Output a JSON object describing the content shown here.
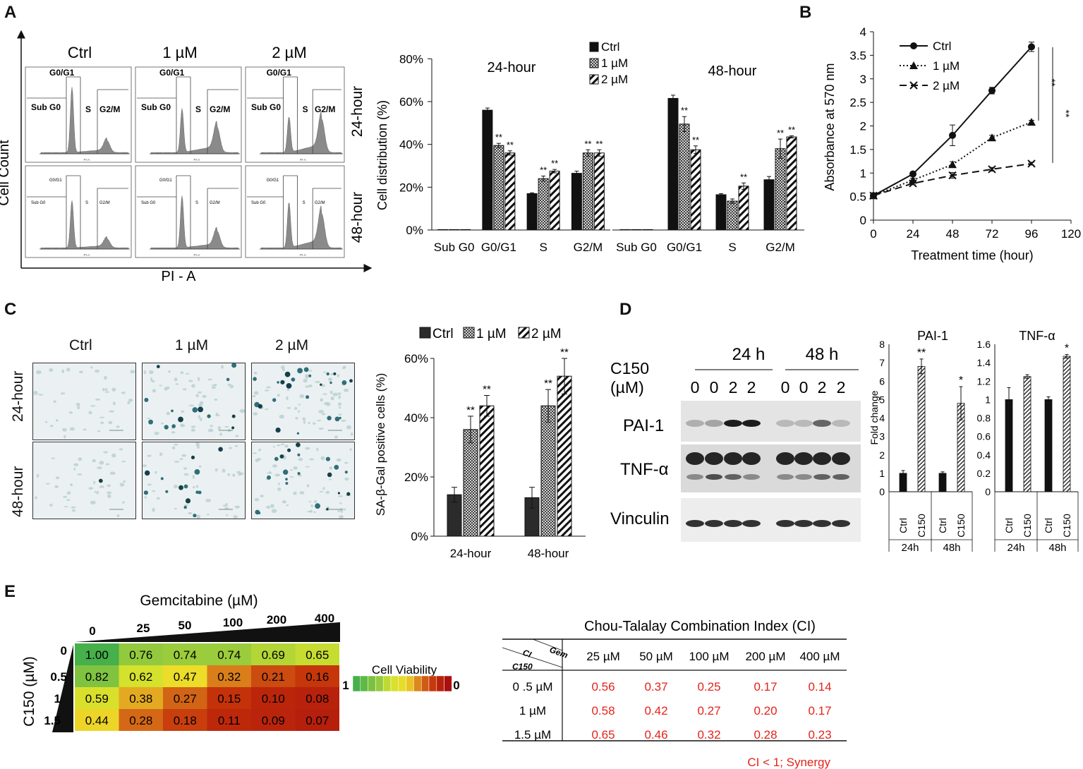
{
  "panel_labels": {
    "a": "A",
    "b": "B",
    "c": "C",
    "d": "D",
    "e": "E"
  },
  "colors": {
    "ctrl": "#111111",
    "hatch": "#222222",
    "synergy_red": "#e3231a",
    "histogram": "#8a8a8a"
  },
  "flow": {
    "col_labels": [
      "Ctrl",
      "1 µM",
      "2 µM"
    ],
    "row_labels": [
      "24-hour",
      "48-hour"
    ],
    "y_title": "Cell Count",
    "x_title": "PI - A",
    "gates": {
      "sub": "Sub G0",
      "g0": "G0/G1",
      "s": "S",
      "g2": "G2/M"
    },
    "tiny_axis": "PI-A"
  },
  "chart_data": [
    {
      "id": "A-distribution",
      "type": "bar",
      "title": "",
      "subplot_titles": [
        "24-hour",
        "48-hour"
      ],
      "ylabel": "Cell distribution (%)",
      "ylim": [
        0,
        80
      ],
      "yticks": [
        "0%",
        "20%",
        "40%",
        "60%",
        "80%"
      ],
      "categories": [
        "Sub G0",
        "G0/G1",
        "S",
        "G2/M"
      ],
      "legend": [
        "Ctrl",
        "1 µM",
        "2 µM"
      ],
      "sig": "**",
      "series_24h": [
        {
          "name": "Ctrl",
          "values": [
            0.2,
            56,
            17,
            26.5
          ],
          "err": [
            0,
            1,
            0.4,
            1
          ]
        },
        {
          "name": "1 µM",
          "values": [
            0.2,
            39.5,
            24,
            36
          ],
          "err": [
            0,
            1,
            1.2,
            1.5
          ]
        },
        {
          "name": "2 µM",
          "values": [
            0.2,
            36,
            27.5,
            36
          ],
          "err": [
            0,
            1,
            0.8,
            1.5
          ]
        }
      ],
      "series_48h": [
        {
          "name": "Ctrl",
          "values": [
            0.2,
            61.5,
            16.5,
            23.5
          ],
          "err": [
            0,
            1.5,
            0.5,
            1.5
          ]
        },
        {
          "name": "1 µM",
          "values": [
            0.2,
            49.5,
            13.5,
            38
          ],
          "err": [
            0,
            3.5,
            1,
            4.5
          ]
        },
        {
          "name": "2 µM",
          "values": [
            0.2,
            37.5,
            20.5,
            43.5
          ],
          "err": [
            0,
            1.8,
            1.5,
            0.5
          ]
        }
      ],
      "sig_flags_24h": [
        [
          0,
          0,
          0,
          0
        ],
        [
          0,
          1,
          1,
          1
        ],
        [
          0,
          1,
          1,
          1
        ]
      ],
      "sig_flags_48h": [
        [
          0,
          0,
          0,
          0
        ],
        [
          0,
          1,
          0,
          1
        ],
        [
          0,
          1,
          1,
          1
        ]
      ]
    },
    {
      "id": "B-growth",
      "type": "line",
      "xlabel": "Treatment time (hour)",
      "ylabel": "Absorbance at 570 nm",
      "xlim": [
        0,
        120
      ],
      "ylim": [
        0,
        4
      ],
      "xticks": [
        0,
        24,
        48,
        72,
        96,
        120
      ],
      "yticks": [
        "0",
        "0.5",
        "1",
        "1.5",
        "2",
        "2.5",
        "3",
        "3.5",
        "4"
      ],
      "x": [
        0,
        24,
        48,
        72,
        96
      ],
      "series": [
        {
          "name": "Ctrl",
          "values": [
            0.52,
            0.98,
            1.8,
            2.75,
            3.68
          ],
          "err": [
            0.03,
            0.04,
            0.22,
            0.07,
            0.1
          ]
        },
        {
          "name": "1 µM",
          "values": [
            0.52,
            0.85,
            1.18,
            1.75,
            2.08
          ],
          "err": [
            0.03,
            0.04,
            0.06,
            0.05,
            0.04
          ]
        },
        {
          "name": "2 µM",
          "values": [
            0.52,
            0.78,
            0.95,
            1.08,
            1.2
          ],
          "err": [
            0.03,
            0.03,
            0.06,
            0.04,
            0.03
          ]
        }
      ],
      "sig": [
        "**",
        "**"
      ]
    },
    {
      "id": "C-senescence",
      "type": "bar",
      "ylabel": "SA-β-Gal positive cells (%)",
      "ylim": [
        0,
        60
      ],
      "yticks": [
        "0%",
        "20%",
        "40%",
        "60%"
      ],
      "categories": [
        "24-hour",
        "48-hour"
      ],
      "legend": [
        "Ctrl",
        "1 µM",
        "2 µM"
      ],
      "series": [
        {
          "name": "Ctrl",
          "values": [
            14,
            13
          ],
          "err": [
            2.5,
            3.5
          ]
        },
        {
          "name": "1 µM",
          "values": [
            36,
            44
          ],
          "err": [
            4.5,
            5.5
          ]
        },
        {
          "name": "2 µM",
          "values": [
            44,
            54
          ],
          "err": [
            3.5,
            6
          ]
        }
      ],
      "sig": "**"
    },
    {
      "id": "D-PAI1",
      "type": "bar",
      "title": "PAI-1",
      "ylabel": "Fold change",
      "ylim": [
        0,
        8
      ],
      "yticks": [
        "0",
        "1",
        "2",
        "3",
        "4",
        "5",
        "6",
        "7",
        "8"
      ],
      "categories": [
        "Ctrl",
        "C150",
        "Ctrl",
        "C150"
      ],
      "groups": [
        "24h",
        "48h"
      ],
      "values": [
        1,
        6.8,
        1,
        4.8
      ],
      "err": [
        0.15,
        0.4,
        0.08,
        0.9
      ],
      "sig": [
        "",
        "**",
        "",
        "*"
      ]
    },
    {
      "id": "D-TNFa",
      "type": "bar",
      "title": "TNF-α",
      "ylim": [
        0,
        1.6
      ],
      "yticks": [
        "0",
        "0.2",
        "0.4",
        "0.6",
        "0.8",
        "1",
        "1.2",
        "1.4",
        "1.6"
      ],
      "categories": [
        "Ctrl",
        "C150",
        "Ctrl",
        "C150"
      ],
      "groups": [
        "24h",
        "48h"
      ],
      "values": [
        1,
        1.25,
        1,
        1.47
      ],
      "err": [
        0.13,
        0.02,
        0.03,
        0.02
      ],
      "sig": [
        "",
        "",
        "",
        "*"
      ]
    },
    {
      "id": "E-heatmap",
      "type": "heatmap",
      "title": "Gemcitabine (µM)",
      "ylabel": "C150 (µM)",
      "x_labels": [
        "0",
        "25",
        "50",
        "100",
        "200",
        "400"
      ],
      "y_labels": [
        "0",
        "0.5",
        "1",
        "1.5"
      ],
      "values": [
        [
          "1.00",
          "0.76",
          "0.74",
          "0.74",
          "0.69",
          "0.65"
        ],
        [
          "0.82",
          "0.62",
          "0.47",
          "0.32",
          "0.21",
          "0.16"
        ],
        [
          "0.59",
          "0.38",
          "0.27",
          "0.15",
          "0.10",
          "0.08"
        ],
        [
          "0.44",
          "0.28",
          "0.18",
          "0.11",
          "0.09",
          "0.07"
        ]
      ],
      "legend_title": "Cell Viability",
      "legend_min": "0",
      "legend_max": "1"
    },
    {
      "id": "E-CI",
      "type": "table",
      "title": "Chou-Talalay Combination Index (CI)",
      "corner_top": "Gem",
      "corner_mid": "CI",
      "corner_bottom": "C150",
      "columns": [
        "25 µM",
        "50 µM",
        "100 µM",
        "200 µM",
        "400 µM"
      ],
      "rows": [
        {
          "label": "0 .5 µM",
          "values": [
            "0.56",
            "0.37",
            "0.25",
            "0.17",
            "0.14"
          ]
        },
        {
          "label": "1 µM",
          "values": [
            "0.58",
            "0.42",
            "0.27",
            "0.20",
            "0.17"
          ]
        },
        {
          "label": "1.5 µM",
          "values": [
            "0.65",
            "0.46",
            "0.32",
            "0.28",
            "0.23"
          ]
        }
      ],
      "footnote": "CI < 1; Synergy"
    }
  ],
  "micro": {
    "col_labels": [
      "Ctrl",
      "1 µM",
      "2 µM"
    ],
    "row_labels": [
      "24-hour",
      "48-hour"
    ]
  },
  "blot": {
    "times": [
      "24 h",
      "48 h"
    ],
    "treatment_label": "C150",
    "unit_label": "(µM)",
    "doses": [
      "0",
      "0",
      "2",
      "2",
      "0",
      "0",
      "2",
      "2"
    ],
    "proteins": [
      "PAI-1",
      "TNF-α",
      "Vinculin"
    ]
  }
}
